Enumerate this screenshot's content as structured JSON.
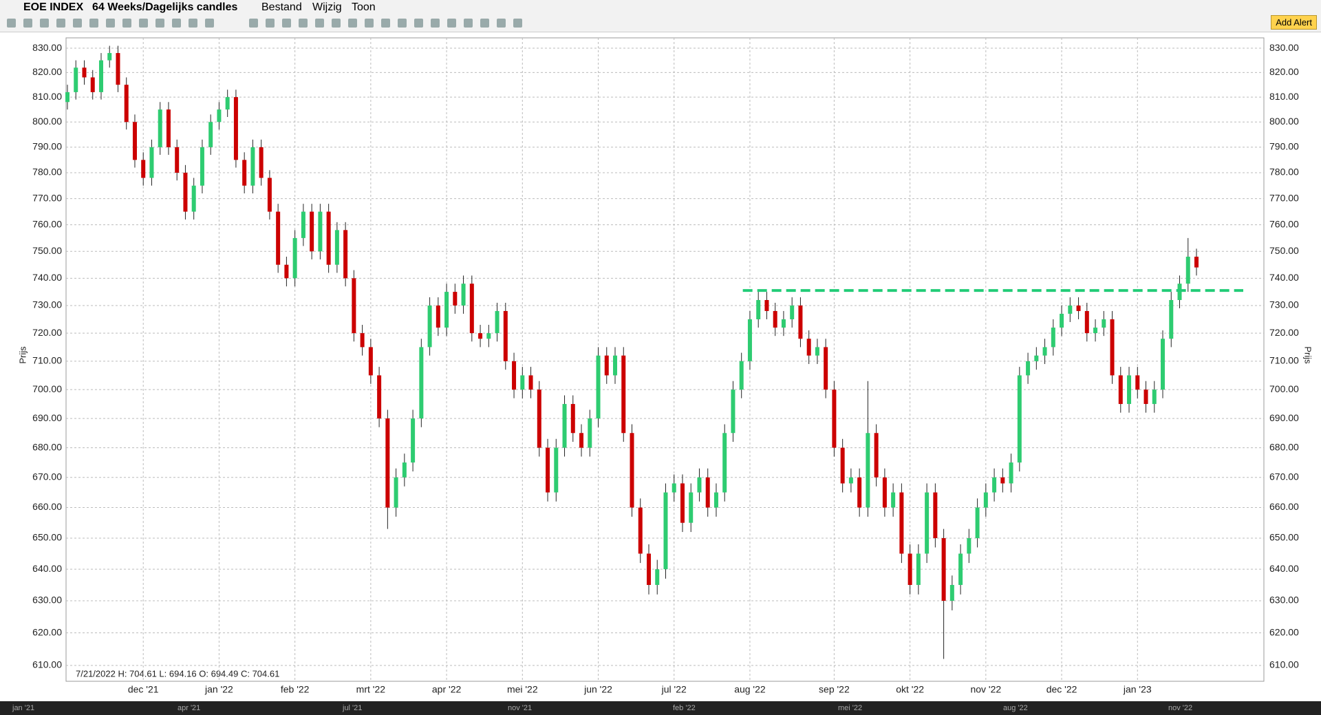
{
  "header": {
    "symbol": "EOE INDEX",
    "period": "64 Weeks/Dagelijks candles",
    "menus": [
      "Bestand",
      "Wijzig",
      "Toon"
    ],
    "alert_button": "Add Alert"
  },
  "chart_data": {
    "type": "candlestick",
    "log_scale": true,
    "grid": true,
    "y_label": "Prijs",
    "info": "7/21/2022  H: 704.61  L: 694.16  O: 694.49  C: 704.61",
    "up_color": "#2ecc71",
    "down_color": "#cc0000",
    "categories": [
      null,
      null,
      null,
      null,
      null,
      null,
      null,
      null,
      null,
      "dec '21",
      null,
      null,
      null,
      null,
      null,
      null,
      null,
      null,
      "jan '22",
      null,
      null,
      null,
      null,
      null,
      null,
      null,
      null,
      "feb '22",
      null,
      null,
      null,
      null,
      null,
      null,
      null,
      null,
      "mrt '22",
      null,
      null,
      null,
      null,
      null,
      null,
      null,
      null,
      "apr '22",
      null,
      null,
      null,
      null,
      null,
      null,
      null,
      null,
      "mei '22",
      null,
      null,
      null,
      null,
      null,
      null,
      null,
      null,
      "jun '22",
      null,
      null,
      null,
      null,
      null,
      null,
      null,
      null,
      "jul '22",
      null,
      null,
      null,
      null,
      null,
      null,
      null,
      null,
      "aug '22",
      null,
      null,
      null,
      null,
      null,
      null,
      null,
      null,
      null,
      "sep '22",
      null,
      null,
      null,
      null,
      null,
      null,
      null,
      null,
      "okt '22",
      null,
      null,
      null,
      null,
      null,
      null,
      null,
      null,
      "nov '22",
      null,
      null,
      null,
      null,
      null,
      null,
      null,
      null,
      "dec '22",
      null,
      null,
      null,
      null,
      null,
      null,
      null,
      null,
      "jan '23",
      null,
      null,
      null,
      null,
      null,
      null,
      null
    ],
    "open": [
      808,
      812,
      822,
      818,
      812,
      825,
      828,
      815,
      800,
      785,
      778,
      790,
      805,
      790,
      780,
      765,
      775,
      790,
      800,
      805,
      810,
      785,
      775,
      790,
      778,
      765,
      745,
      740,
      755,
      765,
      750,
      765,
      745,
      758,
      740,
      720,
      715,
      705,
      690,
      660,
      670,
      675,
      690,
      715,
      730,
      722,
      735,
      730,
      738,
      720,
      718,
      720,
      728,
      710,
      700,
      705,
      700,
      680,
      665,
      680,
      695,
      685,
      680,
      690,
      712,
      705,
      712,
      685,
      660,
      645,
      635,
      640,
      665,
      668,
      655,
      665,
      670,
      660,
      665,
      685,
      700,
      710,
      725,
      732,
      728,
      722,
      725,
      730,
      718,
      712,
      715,
      700,
      680,
      668,
      670,
      660,
      685,
      670,
      660,
      665,
      645,
      635,
      645,
      665,
      650,
      630,
      635,
      645,
      650,
      660,
      665,
      670,
      668,
      675,
      705,
      710,
      712,
      715,
      722,
      727,
      730,
      728,
      720,
      722,
      725,
      705,
      695,
      705,
      700,
      695,
      700,
      718,
      732,
      738,
      748
    ],
    "high": [
      815,
      825,
      825,
      821,
      828,
      831,
      831,
      818,
      803,
      788,
      793,
      808,
      808,
      793,
      783,
      778,
      793,
      803,
      808,
      813,
      813,
      788,
      793,
      793,
      781,
      768,
      748,
      758,
      768,
      768,
      768,
      768,
      761,
      761,
      743,
      723,
      718,
      708,
      693,
      673,
      678,
      693,
      718,
      733,
      733,
      738,
      738,
      741,
      741,
      723,
      723,
      731,
      731,
      713,
      708,
      708,
      703,
      683,
      683,
      698,
      698,
      688,
      693,
      715,
      715,
      715,
      715,
      688,
      663,
      648,
      643,
      668,
      671,
      671,
      668,
      673,
      673,
      668,
      688,
      703,
      713,
      728,
      735,
      735,
      731,
      728,
      733,
      733,
      721,
      718,
      718,
      703,
      683,
      673,
      673,
      703,
      688,
      673,
      668,
      668,
      648,
      648,
      668,
      668,
      653,
      638,
      648,
      653,
      663,
      668,
      673,
      673,
      678,
      708,
      713,
      715,
      718,
      725,
      730,
      733,
      733,
      731,
      725,
      728,
      728,
      708,
      708,
      708,
      703,
      703,
      721,
      735,
      741,
      755,
      751
    ],
    "low": [
      805,
      809,
      815,
      809,
      809,
      822,
      812,
      797,
      782,
      775,
      775,
      787,
      787,
      777,
      762,
      762,
      772,
      787,
      797,
      802,
      782,
      772,
      772,
      775,
      762,
      742,
      737,
      737,
      752,
      747,
      747,
      742,
      742,
      737,
      717,
      712,
      702,
      687,
      653,
      657,
      667,
      672,
      687,
      712,
      719,
      719,
      727,
      727,
      717,
      715,
      715,
      717,
      707,
      697,
      697,
      697,
      677,
      662,
      662,
      677,
      682,
      677,
      677,
      687,
      702,
      702,
      682,
      657,
      642,
      632,
      632,
      637,
      662,
      652,
      652,
      662,
      657,
      657,
      662,
      682,
      697,
      707,
      722,
      725,
      719,
      719,
      722,
      715,
      709,
      709,
      697,
      677,
      665,
      665,
      657,
      657,
      667,
      657,
      657,
      642,
      632,
      632,
      642,
      647,
      612,
      627,
      632,
      642,
      647,
      657,
      662,
      665,
      665,
      672,
      702,
      707,
      709,
      712,
      719,
      724,
      725,
      717,
      717,
      719,
      702,
      692,
      692,
      697,
      692,
      692,
      697,
      715,
      729,
      735,
      741
    ],
    "close": [
      812,
      822,
      818,
      812,
      825,
      828,
      815,
      800,
      785,
      778,
      790,
      805,
      790,
      780,
      765,
      775,
      790,
      800,
      805,
      810,
      785,
      775,
      790,
      778,
      765,
      745,
      740,
      755,
      765,
      750,
      765,
      745,
      758,
      740,
      720,
      715,
      705,
      690,
      660,
      670,
      675,
      690,
      715,
      730,
      722,
      735,
      730,
      738,
      720,
      718,
      720,
      728,
      710,
      700,
      705,
      700,
      680,
      665,
      680,
      695,
      685,
      680,
      690,
      712,
      705,
      712,
      685,
      660,
      645,
      635,
      640,
      665,
      668,
      655,
      665,
      670,
      660,
      665,
      685,
      700,
      710,
      725,
      732,
      728,
      722,
      725,
      730,
      718,
      712,
      715,
      700,
      680,
      668,
      670,
      660,
      685,
      670,
      660,
      665,
      645,
      635,
      645,
      665,
      650,
      630,
      635,
      645,
      650,
      660,
      665,
      670,
      668,
      675,
      705,
      710,
      712,
      715,
      722,
      727,
      730,
      728,
      720,
      722,
      725,
      705,
      695,
      705,
      700,
      695,
      700,
      718,
      732,
      738,
      748,
      744
    ],
    "ylim": [
      605.2,
      834.3
    ],
    "yticks": [
      {
        "value": 610,
        "label": "610.00"
      },
      {
        "value": 620,
        "label": "620.00"
      },
      {
        "value": 630,
        "label": "630.00"
      },
      {
        "value": 640,
        "label": "640.00"
      },
      {
        "value": 650,
        "label": "650.00"
      },
      {
        "value": 660,
        "label": "660.00"
      },
      {
        "value": 670,
        "label": "670.00"
      },
      {
        "value": 680,
        "label": "680.00"
      },
      {
        "value": 690,
        "label": "690.00"
      },
      {
        "value": 700,
        "label": "700.00"
      },
      {
        "value": 710,
        "label": "710.00"
      },
      {
        "value": 720,
        "label": "720.00"
      },
      {
        "value": 730,
        "label": "730.00"
      },
      {
        "value": 740,
        "label": "740.00"
      },
      {
        "value": 750,
        "label": "750.00"
      },
      {
        "value": 760,
        "label": "760.00"
      },
      {
        "value": 770,
        "label": "770.00"
      },
      {
        "value": 780,
        "label": "780.00"
      },
      {
        "value": 790,
        "label": "790.00"
      },
      {
        "value": 800,
        "label": "800.00"
      },
      {
        "value": 810,
        "label": "810.00"
      },
      {
        "value": 820,
        "label": "820.00"
      },
      {
        "value": 830,
        "label": "830.00"
      }
    ],
    "level_line": {
      "value": 735.5,
      "color": "#22cc77"
    }
  },
  "navigator_labels": [
    "jan '21",
    "apr '21",
    "jul '21",
    "nov '21",
    "feb '22",
    "mei '22",
    "aug '22",
    "nov '22"
  ]
}
